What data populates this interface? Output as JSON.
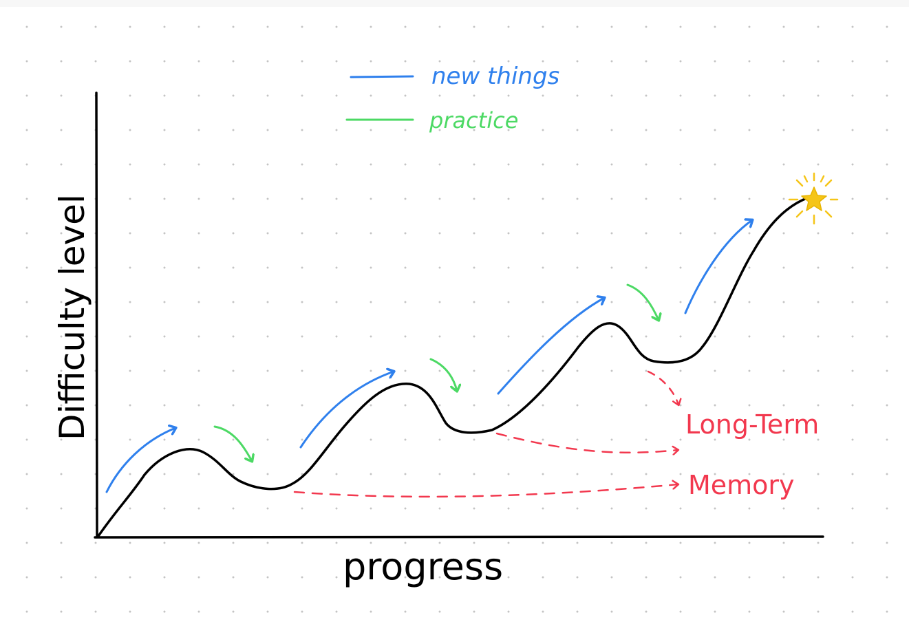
{
  "axes": {
    "y_label": "Difficulty level",
    "x_label": "progress"
  },
  "legend": {
    "new_things": "new things",
    "practice": "practice"
  },
  "memory_label": {
    "line1": "Long-Term",
    "line2": "Memory"
  },
  "colors": {
    "curve": "#000000",
    "new_things": "#2f80ed",
    "practice": "#4cd964",
    "memory": "#f2384e",
    "star": "#f5c518"
  }
}
